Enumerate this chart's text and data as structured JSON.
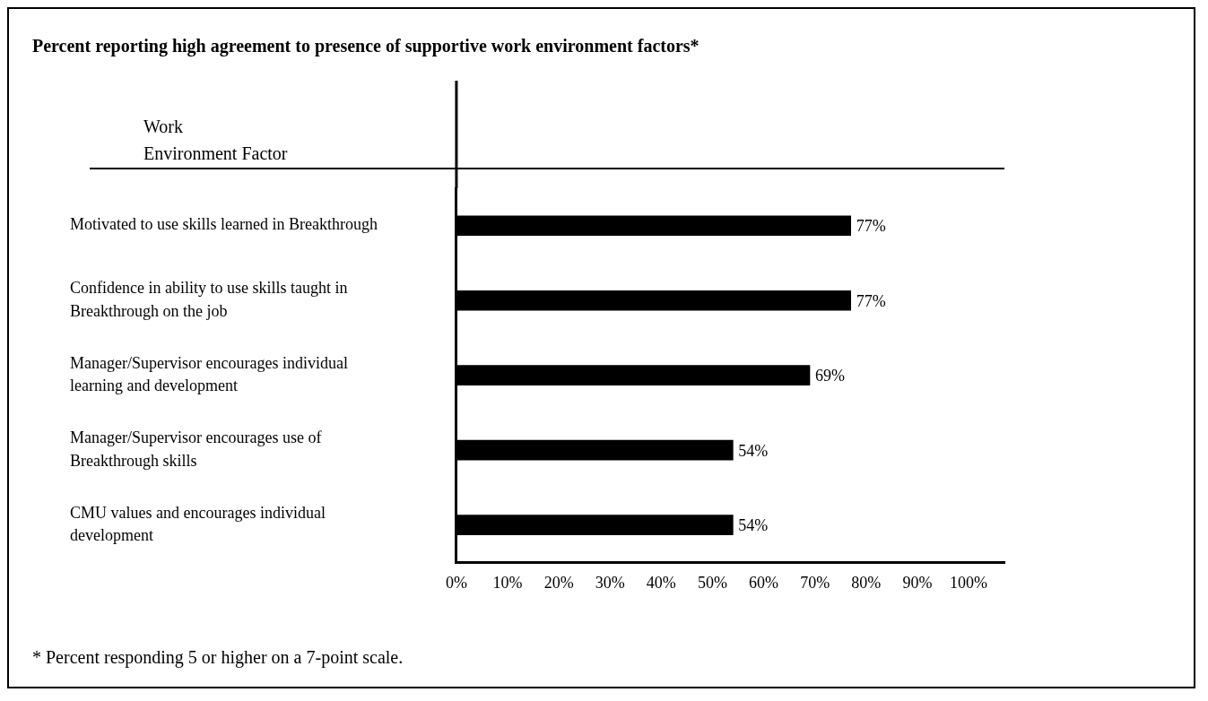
{
  "chart_data": {
    "type": "bar",
    "orientation": "horizontal",
    "title": "Percent reporting high agreement to presence of supportive work environment factors*",
    "ylabel": "Work Environment Factor",
    "categories": [
      "Motivated to use skills learned in Breakthrough",
      "Confidence in ability to use skills taught in Breakthrough on the job",
      "Manager/Supervisor encourages individual learning and development",
      "Manager/Supervisor encourages use of Breakthrough skills",
      "CMU values and encourages individual development"
    ],
    "values": [
      77,
      77,
      69,
      54,
      54
    ],
    "value_labels": [
      "77%",
      "77%",
      "69%",
      "54%",
      "54%"
    ],
    "color": "#000000",
    "xlim": [
      0,
      107
    ],
    "xticks": [
      {
        "value": 0,
        "label": "0%"
      },
      {
        "value": 10,
        "label": "10%"
      },
      {
        "value": 20,
        "label": "20%"
      },
      {
        "value": 30,
        "label": "30%"
      },
      {
        "value": 40,
        "label": "40%"
      },
      {
        "value": 50,
        "label": "50%"
      },
      {
        "value": 60,
        "label": "60%"
      },
      {
        "value": 70,
        "label": "70%"
      },
      {
        "value": 80,
        "label": "80%"
      },
      {
        "value": 90,
        "label": "90%"
      },
      {
        "value": 100,
        "label": "100%"
      }
    ],
    "grid": false,
    "legend": false,
    "annotations": [
      "* Percent responding 5 or higher on a 7-point scale."
    ]
  }
}
